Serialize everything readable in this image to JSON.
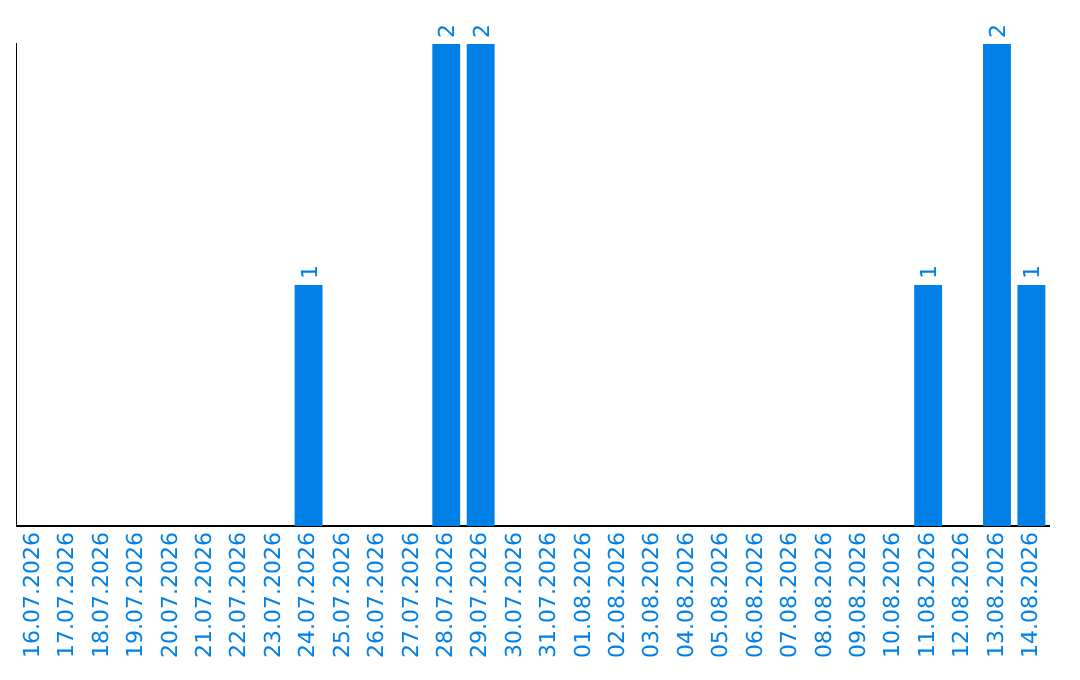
{
  "chart_data": {
    "type": "bar",
    "categories": [
      "16.07.2026",
      "17.07.2026",
      "18.07.2026",
      "19.07.2026",
      "20.07.2026",
      "21.07.2026",
      "22.07.2026",
      "23.07.2026",
      "24.07.2026",
      "25.07.2026",
      "26.07.2026",
      "27.07.2026",
      "28.07.2026",
      "29.07.2026",
      "30.07.2026",
      "31.07.2026",
      "01.08.2026",
      "02.08.2026",
      "03.08.2026",
      "04.08.2026",
      "05.08.2026",
      "06.08.2026",
      "07.08.2026",
      "08.08.2026",
      "09.08.2026",
      "10.08.2026",
      "11.08.2026",
      "12.08.2026",
      "13.08.2026",
      "14.08.2026"
    ],
    "values": [
      0,
      0,
      0,
      0,
      0,
      0,
      0,
      0,
      1,
      0,
      0,
      0,
      2,
      2,
      0,
      0,
      0,
      0,
      0,
      0,
      0,
      0,
      0,
      0,
      0,
      0,
      1,
      0,
      2,
      1
    ],
    "value_labels": [
      null,
      null,
      null,
      null,
      null,
      null,
      null,
      null,
      "1",
      null,
      null,
      null,
      "2",
      "2",
      null,
      null,
      null,
      null,
      null,
      null,
      null,
      null,
      null,
      null,
      null,
      null,
      "1",
      null,
      "2",
      "1"
    ],
    "color": "#0080e6",
    "grid": false,
    "legend": false,
    "tick_labels": "x"
  }
}
